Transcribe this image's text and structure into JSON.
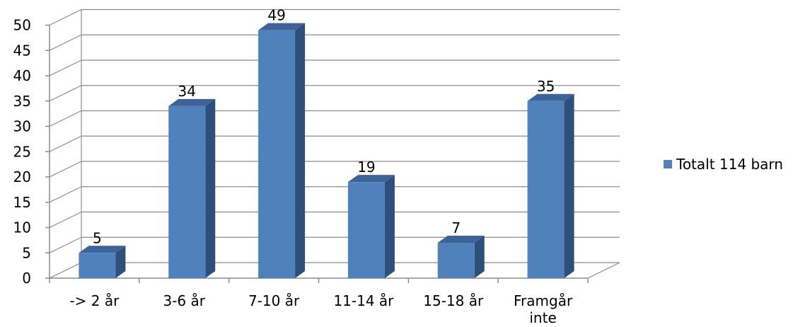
{
  "chart_data": {
    "type": "bar",
    "style": "3d-column",
    "categories": [
      "-> 2 år",
      "3-6 år",
      "7-10 år",
      "11-14 år",
      "15-18 år",
      "Framgår\ninte"
    ],
    "series": [
      {
        "name": "Totalt 114 barn",
        "values": [
          5,
          34,
          49,
          19,
          7,
          35
        ],
        "color": "#4F81BD"
      }
    ],
    "data_labels": [
      "5",
      "34",
      "49",
      "19",
      "7",
      "35"
    ],
    "ylim": [
      0,
      50
    ],
    "yticks": [
      0,
      5,
      10,
      15,
      20,
      25,
      30,
      35,
      40,
      45,
      50
    ],
    "grid": true,
    "legend_position": "right"
  }
}
